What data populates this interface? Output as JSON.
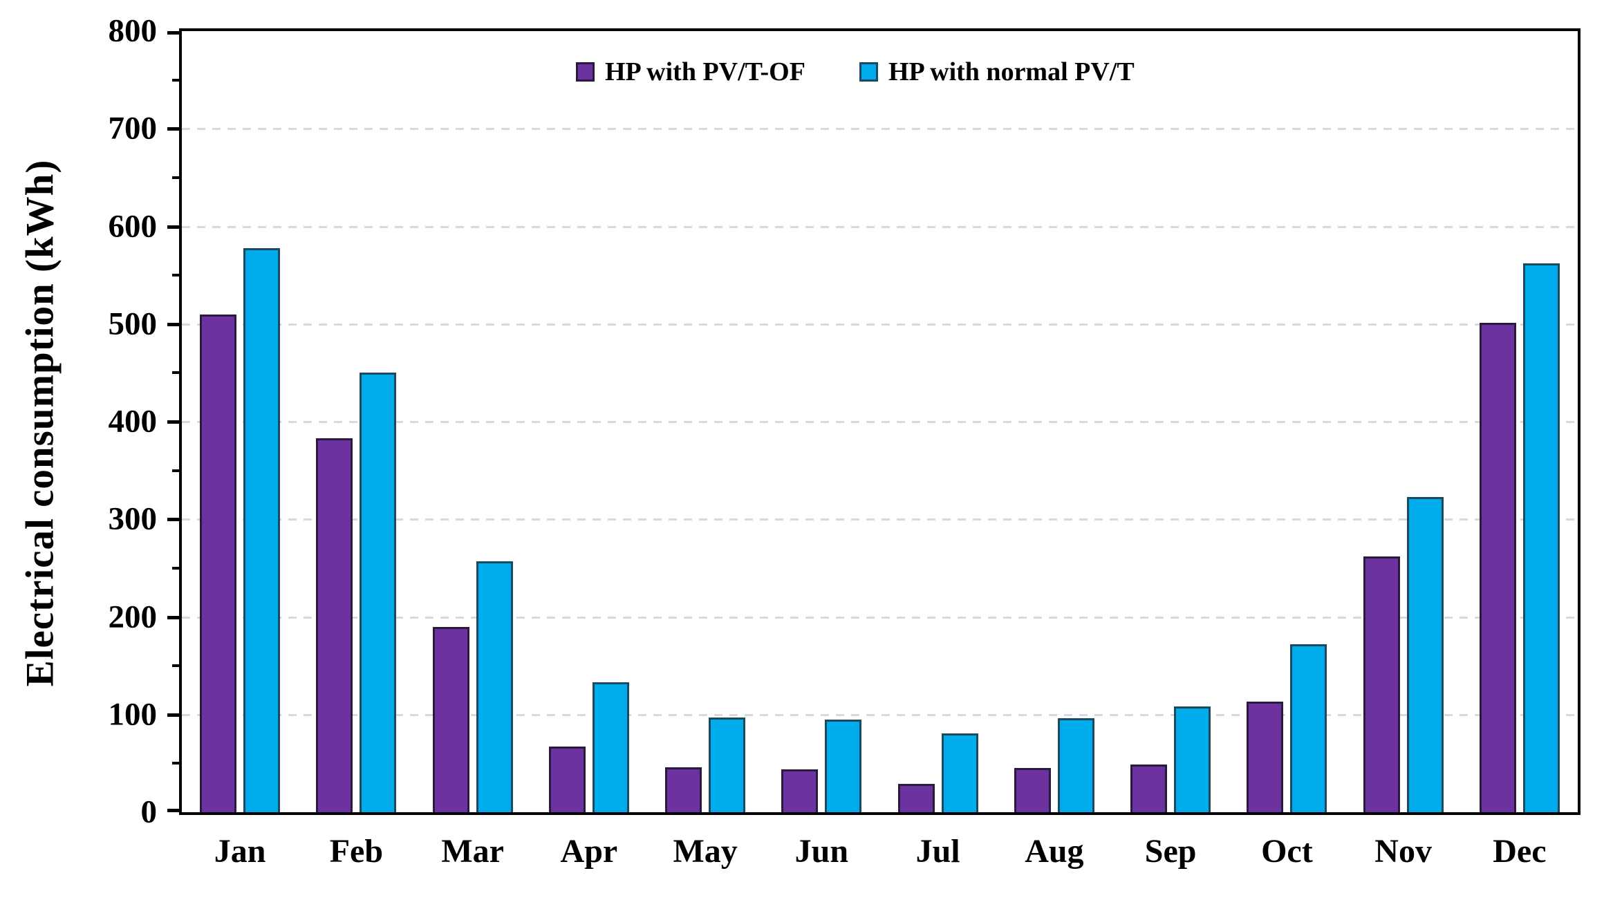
{
  "chart_data": {
    "type": "bar",
    "title": "",
    "xlabel": "",
    "ylabel": "Electrical consumption (kWh)",
    "categories": [
      "Jan",
      "Feb",
      "Mar",
      "Apr",
      "May",
      "Jun",
      "Jul",
      "Aug",
      "Sep",
      "Oct",
      "Nov",
      "Dec"
    ],
    "series": [
      {
        "name": "HP with PV/T-OF",
        "color": "#6B32A0",
        "border_color": "#2A1B3D",
        "values": [
          510,
          383,
          190,
          67,
          46,
          44,
          29,
          45,
          49,
          113,
          262,
          501
        ]
      },
      {
        "name": "HP with normal PV/T",
        "color": "#00ACEC",
        "border_color": "#1B4A5E",
        "values": [
          578,
          450,
          257,
          133,
          97,
          95,
          81,
          96,
          108,
          172,
          323,
          562
        ]
      }
    ],
    "ylim": [
      0,
      800
    ],
    "ytick_step": 100,
    "ytick_labels": [
      "0",
      "100",
      "200",
      "300",
      "400",
      "500",
      "600",
      "700",
      "800"
    ],
    "minor_tick_step": 50,
    "grid": "horizontal-dashed-at-major-ticks",
    "gridline_color": "#D9D9D9",
    "axis_color": "#000000",
    "legend_position": "top-center-inside",
    "plot_background": "#FFFFFF"
  }
}
